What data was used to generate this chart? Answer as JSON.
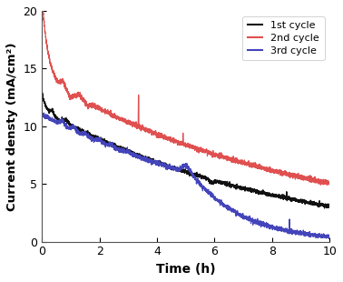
{
  "title": "",
  "xlabel": "Time (h)",
  "ylabel": "Current densty (mA/cm²)",
  "xlim": [
    0,
    10
  ],
  "ylim": [
    0,
    20
  ],
  "xticks": [
    0,
    2,
    4,
    6,
    8,
    10
  ],
  "yticks": [
    0,
    5,
    10,
    15,
    20
  ],
  "legend": [
    "1st cycle",
    "2nd cycle",
    "3rd cycle"
  ],
  "colors": [
    "#111111",
    "#e05050",
    "#4444bb"
  ],
  "linewidth": 0.9,
  "background_color": "#ffffff"
}
